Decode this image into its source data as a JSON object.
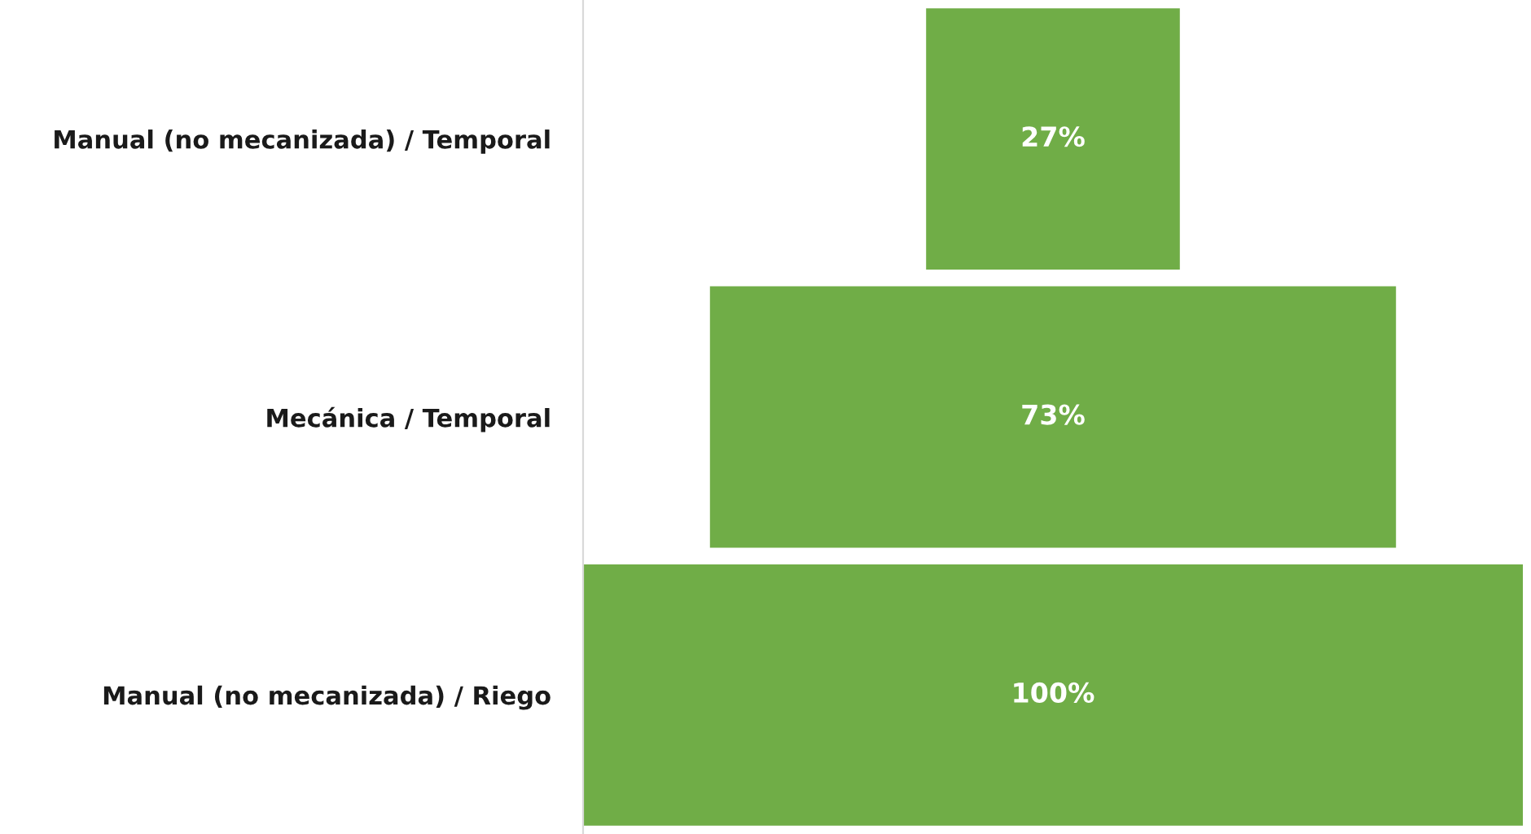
{
  "chart_data": {
    "type": "other",
    "categories": [
      "Manual (no mecanizada) / Temporal",
      "Mecánica / Temporal",
      "Manual (no mecanizada) / Riego"
    ],
    "values": [
      27,
      73,
      100
    ],
    "color": "#70ad47",
    "value_labels": [
      "27%",
      "73%",
      "100%"
    ]
  }
}
